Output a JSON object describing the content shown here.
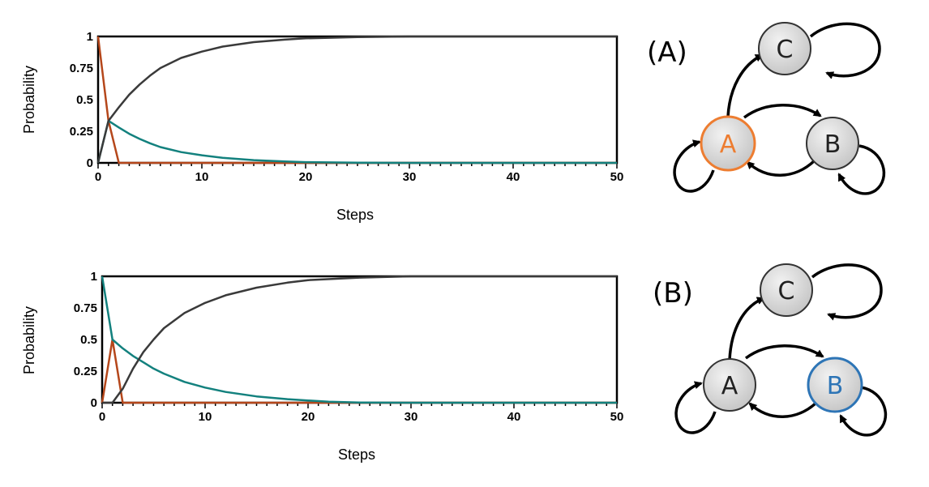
{
  "colors": {
    "brown": "#b5471b",
    "teal": "#13817e",
    "gray": "#3a3a3a",
    "node_fill": "#d4d4d4",
    "highlight_A": "#ed7d31",
    "highlight_B": "#2e75b6"
  },
  "chart_data": [
    {
      "type": "line",
      "xlabel": "Steps",
      "ylabel": "Probability",
      "xlim": [
        0,
        50
      ],
      "ylim": [
        0,
        1
      ],
      "xticks": [
        "0",
        "10",
        "20",
        "30",
        "40",
        "50"
      ],
      "yticks": [
        "0",
        "0.25",
        "0.5",
        "0.75",
        "1"
      ],
      "grid": false,
      "series": [
        {
          "color": "brown",
          "x": [
            0,
            1,
            2,
            5,
            10,
            20,
            30,
            40,
            50
          ],
          "values": [
            1,
            0.333,
            0,
            0,
            0,
            0,
            0,
            0,
            0
          ]
        },
        {
          "color": "teal",
          "x": [
            0,
            1,
            2,
            3,
            4,
            5,
            6,
            8,
            10,
            12,
            15,
            18,
            20,
            25,
            30,
            40,
            50
          ],
          "values": [
            0,
            0.333,
            0.28,
            0.23,
            0.19,
            0.155,
            0.125,
            0.085,
            0.06,
            0.04,
            0.022,
            0.011,
            0.006,
            0.001,
            0,
            0,
            0
          ]
        },
        {
          "color": "gray",
          "x": [
            0,
            1,
            2,
            3,
            4,
            5,
            6,
            8,
            10,
            12,
            15,
            18,
            20,
            25,
            30,
            40,
            50
          ],
          "values": [
            0,
            0.333,
            0.44,
            0.54,
            0.62,
            0.69,
            0.75,
            0.83,
            0.88,
            0.92,
            0.955,
            0.975,
            0.985,
            0.995,
            1,
            1,
            1
          ]
        }
      ]
    },
    {
      "type": "line",
      "xlabel": "Steps",
      "ylabel": "Probability",
      "xlim": [
        0,
        50
      ],
      "ylim": [
        0,
        1
      ],
      "xticks": [
        "0",
        "10",
        "20",
        "30",
        "40",
        "50"
      ],
      "yticks": [
        "0",
        "0.25",
        "0.5",
        "0.75",
        "1"
      ],
      "grid": false,
      "series": [
        {
          "color": "brown",
          "x": [
            0,
            1,
            2,
            5,
            10,
            20,
            30,
            40,
            50
          ],
          "values": [
            0,
            0.5,
            0,
            0,
            0,
            0,
            0,
            0,
            0
          ]
        },
        {
          "color": "teal",
          "x": [
            0,
            1,
            2,
            3,
            4,
            5,
            6,
            8,
            10,
            12,
            15,
            18,
            20,
            22,
            25,
            30,
            40,
            50
          ],
          "values": [
            1,
            0.5,
            0.43,
            0.37,
            0.32,
            0.27,
            0.23,
            0.165,
            0.12,
            0.085,
            0.05,
            0.028,
            0.018,
            0.008,
            0.002,
            0,
            0,
            0
          ]
        },
        {
          "color": "gray",
          "x": [
            0,
            1,
            2,
            3,
            4,
            5,
            6,
            8,
            10,
            12,
            15,
            18,
            20,
            25,
            30,
            40,
            50
          ],
          "values": [
            0,
            0,
            0.11,
            0.27,
            0.4,
            0.5,
            0.59,
            0.71,
            0.79,
            0.85,
            0.91,
            0.95,
            0.97,
            0.99,
            1,
            1,
            1
          ]
        }
      ]
    }
  ],
  "diagrams": [
    {
      "panel_label": "(A)",
      "nodes": [
        "C",
        "A",
        "B"
      ],
      "highlighted": "A",
      "highlight_color": "highlight_A"
    },
    {
      "panel_label": "(B)",
      "nodes": [
        "C",
        "A",
        "B"
      ],
      "highlighted": "B",
      "highlight_color": "highlight_B"
    }
  ]
}
